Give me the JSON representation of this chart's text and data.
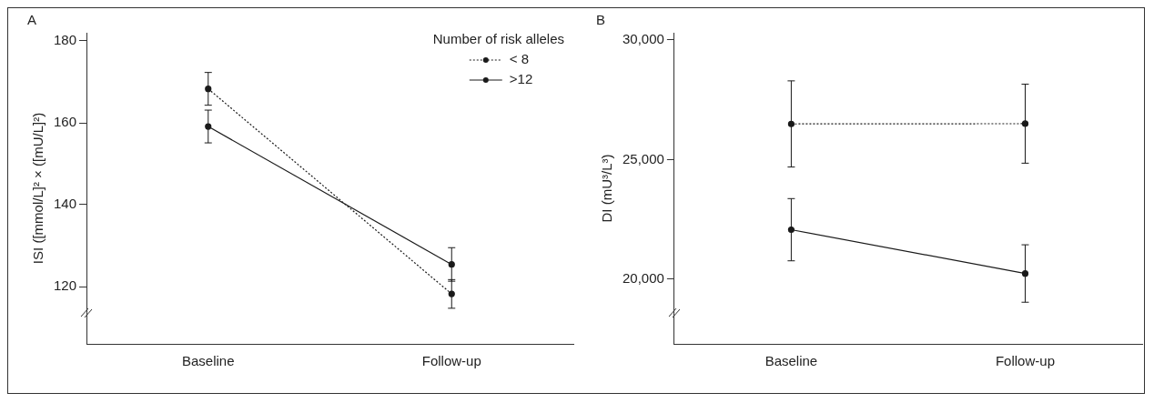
{
  "chart_data": [
    {
      "type": "line",
      "title": "A",
      "ylabel": "ISI ([mmol/L]² × ([mU/L]²)",
      "categories": [
        "Baseline",
        "Follow-up"
      ],
      "legend_title": "Number of risk alleles",
      "legend": "top right",
      "grid": false,
      "marker": "circle",
      "ylim": [
        106,
        182
      ],
      "yticks": [
        120,
        140,
        160,
        180
      ],
      "series": [
        {
          "name": "< 8",
          "color": "#1a1a1a",
          "line_style": "dotted",
          "values": [
            168.3,
            118.2
          ],
          "errors": [
            4,
            3.5
          ]
        },
        {
          "name": ">12",
          "color": "#1a1a1a",
          "line_style": "solid",
          "values": [
            159.1,
            125.4
          ],
          "errors": [
            4,
            4.1
          ]
        }
      ]
    },
    {
      "type": "line",
      "title": "B",
      "ylabel": "DI (mU³/L³)",
      "categories": [
        "Baseline",
        "Follow-up"
      ],
      "grid": false,
      "marker": "circle",
      "ylim": [
        17300,
        30300
      ],
      "yticks": [
        {
          "value": 20000,
          "label": "20,000"
        },
        {
          "value": 25000,
          "label": "25,000"
        },
        {
          "value": 30000,
          "label": "30,000"
        }
      ],
      "series": [
        {
          "color": "#1a1a1a",
          "line_style": "dotted",
          "values": [
            26490,
            26500
          ],
          "errors": [
            1800,
            1650
          ]
        },
        {
          "color": "#1a1a1a",
          "line_style": "solid",
          "values": [
            22070,
            20240
          ],
          "errors": [
            1300,
            1200
          ]
        }
      ]
    }
  ]
}
